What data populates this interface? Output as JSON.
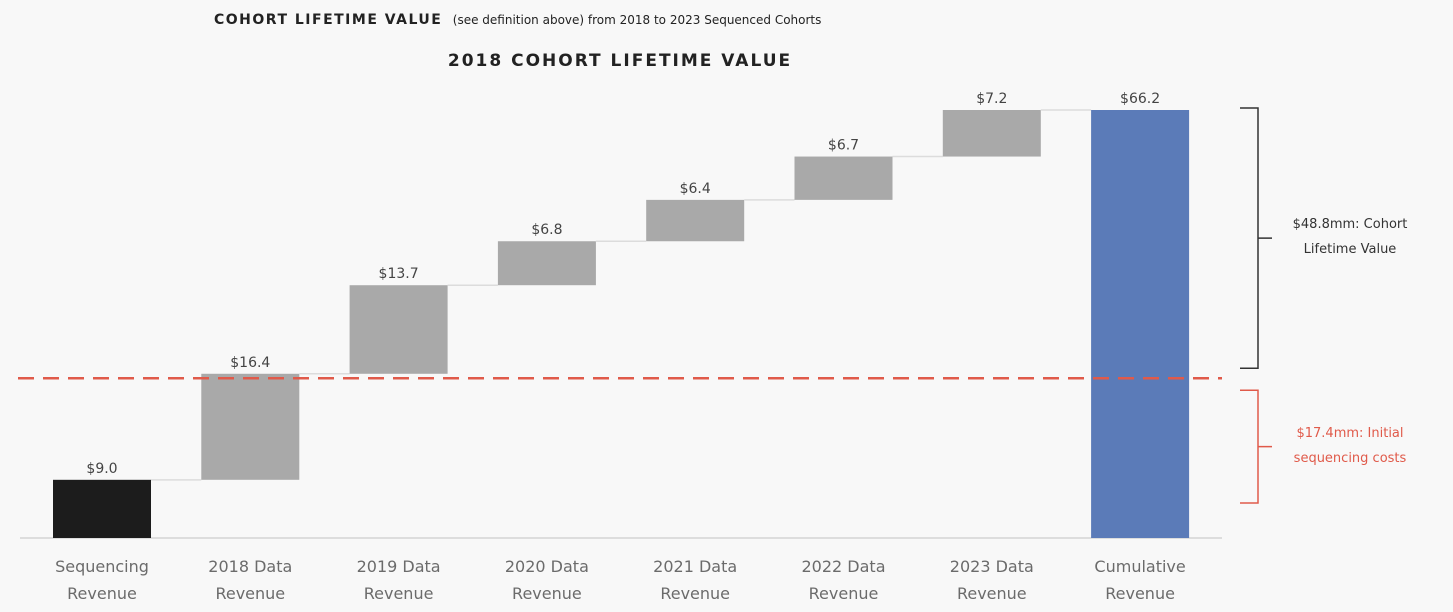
{
  "chart_data": {
    "type": "waterfall",
    "title": "COHORT LIFETIME VALUE",
    "title_note": "(see definition above) from 2018 to 2023 Sequenced Cohorts",
    "subtitle": "2018 COHORT LIFETIME VALUE",
    "categories": [
      "Sequencing\nRevenue",
      "2018 Data\nRevenue",
      "2019 Data\nRevenue",
      "2020 Data\nRevenue",
      "2021 Data\nRevenue",
      "2022 Data\nRevenue",
      "2023 Data\nRevenue",
      "Cumulative\nRevenue"
    ],
    "values": [
      9.0,
      16.4,
      13.7,
      6.8,
      6.4,
      6.7,
      7.2,
      66.2
    ],
    "value_labels": [
      "$9.0",
      "$16.4",
      "$13.7",
      "$6.8",
      "$6.4",
      "$6.7",
      "$7.2",
      "$66.2"
    ],
    "measure": [
      "absolute",
      "relative",
      "relative",
      "relative",
      "relative",
      "relative",
      "relative",
      "total"
    ],
    "colors": [
      "#1c1c1c",
      "#a9a9a9",
      "#a9a9a9",
      "#a9a9a9",
      "#a9a9a9",
      "#a9a9a9",
      "#a9a9a9",
      "#5b7bb8"
    ],
    "reference_line": {
      "value": 24.7,
      "color": "#e05a4a",
      "dashed": true
    },
    "annotations": [
      {
        "text": "$48.8mm: Cohort\nLifetime Value",
        "color": "#333333"
      },
      {
        "text": "$17.4mm: Initial\nsequencing costs",
        "color": "#e05a4a"
      }
    ]
  }
}
